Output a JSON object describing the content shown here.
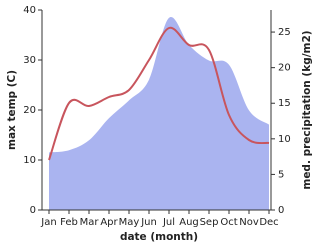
{
  "chart_data": {
    "type": "combo",
    "x_label": "date (month)",
    "y_label": "max temp (C)",
    "y2_label": "med. precipitation (kg/m2)",
    "categories": [
      "Jan",
      "Feb",
      "Mar",
      "Apr",
      "May",
      "Jun",
      "Jul",
      "Aug",
      "Sep",
      "Oct",
      "Nov",
      "Dec"
    ],
    "series": [
      {
        "name": "med. precipitation",
        "kind": "area",
        "axis": "y2",
        "color": "#aab4f0",
        "values": [
          8.1,
          8.4,
          9.8,
          12.9,
          15.4,
          18.3,
          27,
          23.2,
          21,
          20.4,
          14,
          12
        ]
      },
      {
        "name": "max temp",
        "kind": "line",
        "color": "#c8555d",
        "values": [
          10,
          21.4,
          20.8,
          22.6,
          24,
          30,
          36.4,
          33,
          32,
          19,
          14,
          13.4
        ]
      }
    ],
    "ylim": [
      0,
      40
    ],
    "yticks": [
      0,
      10,
      20,
      30,
      40
    ],
    "y2lim": [
      0,
      28.1
    ],
    "y2ticks": [
      0,
      5,
      10,
      15,
      20,
      25
    ]
  }
}
